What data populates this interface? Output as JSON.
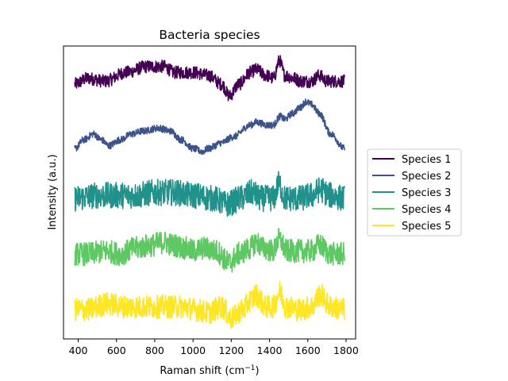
{
  "chart_data": {
    "type": "line",
    "title": "Bacteria species",
    "xlabel_main": "Raman shift (cm",
    "xlabel_sup": "−1",
    "xlabel_end": ")",
    "ylabel": "Intensity (a.u.)",
    "xlim": [
      323,
      1850
    ],
    "ylim": [
      0,
      100
    ],
    "x_ticks": [
      400,
      600,
      800,
      1000,
      1200,
      1400,
      1600,
      1800
    ],
    "x_range": [
      382,
      1792
    ],
    "y_ticks_visible": false,
    "grid": false,
    "legend_position": "right-center",
    "series": [
      {
        "name": "Species 1",
        "color": "#440154",
        "offset": 87,
        "noise": 2.2,
        "profile": [
          [
            382,
            0
          ],
          [
            450,
            2
          ],
          [
            540,
            1
          ],
          [
            650,
            4
          ],
          [
            760,
            6
          ],
          [
            850,
            6
          ],
          [
            900,
            4
          ],
          [
            960,
            4
          ],
          [
            1000,
            4
          ],
          [
            1080,
            3
          ],
          [
            1150,
            0
          ],
          [
            1190,
            -4
          ],
          [
            1240,
            0
          ],
          [
            1300,
            4
          ],
          [
            1330,
            5
          ],
          [
            1380,
            3
          ],
          [
            1420,
            2
          ],
          [
            1452,
            8
          ],
          [
            1480,
            3
          ],
          [
            1530,
            2
          ],
          [
            1560,
            1
          ],
          [
            1620,
            1
          ],
          [
            1660,
            3
          ],
          [
            1700,
            1
          ],
          [
            1792,
            1
          ]
        ]
      },
      {
        "name": "Species 2",
        "color": "#3b528b",
        "offset": 67,
        "noise": 1.2,
        "profile": [
          [
            382,
            -2
          ],
          [
            430,
            1
          ],
          [
            480,
            3
          ],
          [
            520,
            1
          ],
          [
            560,
            -1
          ],
          [
            620,
            1
          ],
          [
            680,
            3
          ],
          [
            740,
            4
          ],
          [
            820,
            5
          ],
          [
            880,
            4
          ],
          [
            940,
            1
          ],
          [
            1000,
            -2
          ],
          [
            1050,
            -3
          ],
          [
            1080,
            -2
          ],
          [
            1150,
            0
          ],
          [
            1210,
            2
          ],
          [
            1300,
            6
          ],
          [
            1330,
            7
          ],
          [
            1390,
            6
          ],
          [
            1420,
            6
          ],
          [
            1455,
            9
          ],
          [
            1480,
            8
          ],
          [
            1520,
            10
          ],
          [
            1560,
            12
          ],
          [
            1590,
            14
          ],
          [
            1620,
            13
          ],
          [
            1660,
            10
          ],
          [
            1720,
            3
          ],
          [
            1792,
            -2
          ]
        ]
      },
      {
        "name": "Species 3",
        "color": "#21918c",
        "offset": 48,
        "noise": 4.5,
        "profile": [
          [
            382,
            0
          ],
          [
            500,
            1
          ],
          [
            600,
            1
          ],
          [
            700,
            1
          ],
          [
            800,
            2
          ],
          [
            900,
            2
          ],
          [
            1000,
            1
          ],
          [
            1100,
            0
          ],
          [
            1180,
            -2
          ],
          [
            1250,
            0
          ],
          [
            1310,
            2
          ],
          [
            1350,
            0
          ],
          [
            1420,
            0
          ],
          [
            1450,
            5
          ],
          [
            1480,
            0
          ],
          [
            1560,
            0
          ],
          [
            1620,
            1
          ],
          [
            1665,
            3
          ],
          [
            1720,
            1
          ],
          [
            1792,
            0
          ]
        ]
      },
      {
        "name": "Species 4",
        "color": "#5ec962",
        "offset": 29,
        "noise": 4.0,
        "profile": [
          [
            382,
            0
          ],
          [
            450,
            0
          ],
          [
            550,
            1
          ],
          [
            620,
            0
          ],
          [
            700,
            2
          ],
          [
            780,
            3
          ],
          [
            850,
            4
          ],
          [
            900,
            3
          ],
          [
            960,
            2
          ],
          [
            1000,
            1
          ],
          [
            1060,
            2
          ],
          [
            1120,
            1
          ],
          [
            1190,
            -3
          ],
          [
            1240,
            0
          ],
          [
            1300,
            2
          ],
          [
            1330,
            4
          ],
          [
            1370,
            2
          ],
          [
            1420,
            1
          ],
          [
            1450,
            5
          ],
          [
            1490,
            1
          ],
          [
            1560,
            1
          ],
          [
            1620,
            1
          ],
          [
            1660,
            3
          ],
          [
            1720,
            0
          ],
          [
            1792,
            0
          ]
        ]
      },
      {
        "name": "Species 5",
        "color": "#fde725",
        "offset": 10,
        "noise": 4.0,
        "profile": [
          [
            382,
            0
          ],
          [
            450,
            0
          ],
          [
            550,
            2
          ],
          [
            650,
            1
          ],
          [
            750,
            1
          ],
          [
            850,
            1
          ],
          [
            950,
            1
          ],
          [
            1010,
            0
          ],
          [
            1080,
            -1
          ],
          [
            1150,
            1
          ],
          [
            1200,
            -3
          ],
          [
            1260,
            0
          ],
          [
            1300,
            3
          ],
          [
            1330,
            5
          ],
          [
            1380,
            1
          ],
          [
            1420,
            1
          ],
          [
            1452,
            6
          ],
          [
            1490,
            1
          ],
          [
            1560,
            0
          ],
          [
            1620,
            1
          ],
          [
            1665,
            5
          ],
          [
            1720,
            1
          ],
          [
            1792,
            0
          ]
        ]
      }
    ]
  }
}
